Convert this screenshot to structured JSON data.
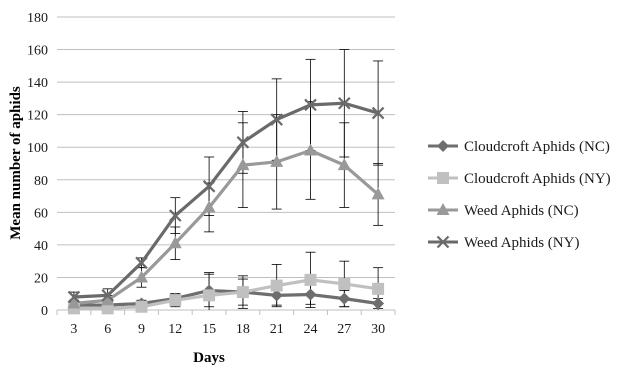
{
  "chart_data": {
    "type": "line",
    "xlabel": "Days",
    "ylabel": "Mean number of aphids",
    "ylim": [
      0,
      180
    ],
    "y_ticks": [
      0,
      20,
      40,
      60,
      80,
      100,
      120,
      140,
      160,
      180
    ],
    "x": [
      3,
      6,
      9,
      12,
      15,
      18,
      21,
      24,
      27,
      30
    ],
    "grid": true,
    "legend_position": "right",
    "error_bars": true,
    "series": [
      {
        "name": "Cloudcroft Aphids (NC)",
        "marker": "diamond",
        "color": "#6e6e6e",
        "values": [
          3,
          3,
          4,
          7,
          12,
          11,
          9,
          9.5,
          7,
          4
        ],
        "errors": [
          2,
          2,
          2,
          3,
          10,
          8,
          6,
          6,
          5,
          3
        ]
      },
      {
        "name": "Cloudcroft Aphids (NY)",
        "marker": "square",
        "color": "#c0c0c0",
        "values": [
          1,
          1,
          2,
          6,
          9,
          11,
          15,
          18.5,
          16,
          13
        ],
        "errors": [
          1,
          1,
          2,
          4,
          14,
          10,
          13,
          17,
          14,
          13
        ]
      },
      {
        "name": "Weed Aphids (NC)",
        "marker": "triangle",
        "color": "#999999",
        "values": [
          4,
          6,
          20,
          41,
          63,
          89,
          91,
          98,
          89,
          71
        ],
        "errors": [
          2,
          3,
          6,
          10,
          15,
          26,
          29,
          30,
          26,
          19
        ]
      },
      {
        "name": "Weed Aphids (NY)",
        "marker": "x",
        "color": "#6a6a6a",
        "values": [
          8,
          9,
          29,
          58,
          76,
          103,
          117,
          126,
          127,
          121
        ],
        "errors": [
          3,
          4,
          3,
          11,
          18,
          19,
          25,
          28,
          33,
          32
        ]
      }
    ]
  }
}
